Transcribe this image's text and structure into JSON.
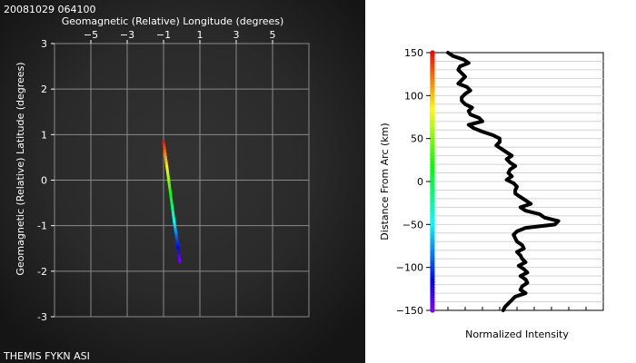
{
  "timestamp": "20081029 064100",
  "footer_label": "THEMIS FYKN ASI",
  "colors": {
    "sky_background": "#1b1b1b",
    "grid_line": "#8a8a8a",
    "profile_line": "#000000"
  },
  "chart_data": [
    {
      "type": "line",
      "panel": "sky-map",
      "title": "",
      "xlabel": "Geomagnetic (Relative) Longitude (degrees)",
      "ylabel": "Geomagnetic (Relative) Latitude (degrees)",
      "x_ticks": [
        -5,
        -3,
        -1,
        1,
        3,
        5
      ],
      "y_ticks": [
        -3,
        -2,
        -1,
        0,
        1,
        2,
        3
      ],
      "xlim": [
        -7,
        7
      ],
      "ylim": [
        -3,
        3
      ],
      "grid": true,
      "x_axis_position": "top",
      "series": [
        {
          "colormap": "rainbow, red at the north end to blue/purple at the south end",
          "x": [
            -1.0,
            -0.9,
            -0.8,
            -0.7,
            -0.6,
            -0.5,
            -0.4,
            -0.3,
            -0.2,
            -0.1
          ],
          "y": [
            0.85,
            0.55,
            0.25,
            -0.05,
            -0.35,
            -0.65,
            -0.95,
            -1.2,
            -1.5,
            -1.8
          ]
        }
      ]
    },
    {
      "type": "line",
      "panel": "intensity-profile",
      "title": "",
      "xlabel": "Normalized Intensity",
      "ylabel": "Distance From Arc (km)",
      "y_ticks": [
        -150,
        -100,
        -50,
        0,
        50,
        100,
        150
      ],
      "ylim": [
        -150,
        150
      ],
      "xlim": [
        0,
        1
      ],
      "x_tick_labels": false,
      "grid": true,
      "color_scale": "rainbow along the left axis, red at +150 km to purple at -150 km",
      "series": [
        {
          "y": [
            150,
            146,
            142,
            138,
            134,
            130,
            126,
            122,
            118,
            114,
            110,
            106,
            102,
            98,
            94,
            90,
            86,
            82,
            78,
            74,
            70,
            66,
            62,
            58,
            54,
            50,
            46,
            42,
            38,
            34,
            30,
            26,
            22,
            18,
            14,
            10,
            6,
            2,
            -2,
            -6,
            -10,
            -14,
            -18,
            -22,
            -26,
            -30,
            -34,
            -38,
            -42,
            -46,
            -50,
            -54,
            -58,
            -62,
            -66,
            -70,
            -74,
            -78,
            -82,
            -86,
            -90,
            -94,
            -98,
            -102,
            -106,
            -110,
            -114,
            -118,
            -122,
            -126,
            -130,
            -134,
            -138,
            -142,
            -146,
            -150
          ],
          "x": [
            0.1,
            0.13,
            0.19,
            0.22,
            0.17,
            0.16,
            0.18,
            0.2,
            0.18,
            0.16,
            0.21,
            0.23,
            0.2,
            0.18,
            0.18,
            0.2,
            0.24,
            0.22,
            0.23,
            0.28,
            0.3,
            0.22,
            0.25,
            0.3,
            0.36,
            0.4,
            0.4,
            0.38,
            0.41,
            0.44,
            0.47,
            0.44,
            0.46,
            0.49,
            0.46,
            0.45,
            0.47,
            0.44,
            0.48,
            0.5,
            0.49,
            0.49,
            0.52,
            0.55,
            0.58,
            0.52,
            0.55,
            0.63,
            0.66,
            0.74,
            0.72,
            0.55,
            0.5,
            0.48,
            0.49,
            0.5,
            0.53,
            0.54,
            0.5,
            0.52,
            0.53,
            0.55,
            0.51,
            0.54,
            0.56,
            0.52,
            0.55,
            0.56,
            0.53,
            0.52,
            0.55,
            0.49,
            0.47,
            0.45,
            0.43,
            0.42
          ]
        }
      ]
    }
  ]
}
